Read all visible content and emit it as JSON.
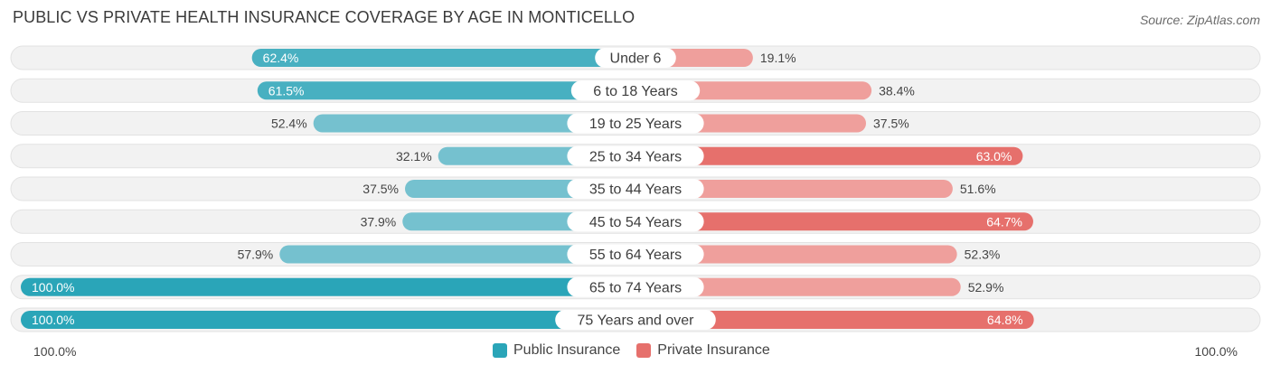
{
  "title": "PUBLIC VS PRIVATE HEALTH INSURANCE COVERAGE BY AGE IN MONTICELLO",
  "source": "Source: ZipAtlas.com",
  "axis_left_label": "100.0%",
  "axis_right_label": "100.0%",
  "colors": {
    "public": "#5fb8c9",
    "public_strong": "#2aa5b8",
    "private": "#ee8a86",
    "private_strong": "#e6706c",
    "row_bg": "#f1f1f1"
  },
  "legend": {
    "public_label": "Public Insurance",
    "private_label": "Private Insurance"
  },
  "chart_data": {
    "type": "bar",
    "orientation": "diverging-horizontal",
    "categories": [
      "Under 6",
      "6 to 18 Years",
      "19 to 25 Years",
      "25 to 34 Years",
      "35 to 44 Years",
      "45 to 54 Years",
      "55 to 64 Years",
      "65 to 74 Years",
      "75 Years and over"
    ],
    "series": [
      {
        "name": "Public Insurance",
        "values": [
          62.4,
          61.5,
          52.4,
          32.1,
          37.5,
          37.9,
          57.9,
          100.0,
          100.0
        ],
        "labels": [
          "62.4%",
          "61.5%",
          "52.4%",
          "32.1%",
          "37.5%",
          "37.9%",
          "57.9%",
          "100.0%",
          "100.0%"
        ]
      },
      {
        "name": "Private Insurance",
        "values": [
          19.1,
          38.4,
          37.5,
          63.0,
          51.6,
          64.7,
          52.3,
          52.9,
          64.8
        ],
        "labels": [
          "19.1%",
          "38.4%",
          "37.5%",
          "63.0%",
          "51.6%",
          "64.7%",
          "52.3%",
          "52.9%",
          "64.8%"
        ]
      }
    ],
    "xlim": [
      0,
      100
    ],
    "legend_position": "bottom-center"
  }
}
